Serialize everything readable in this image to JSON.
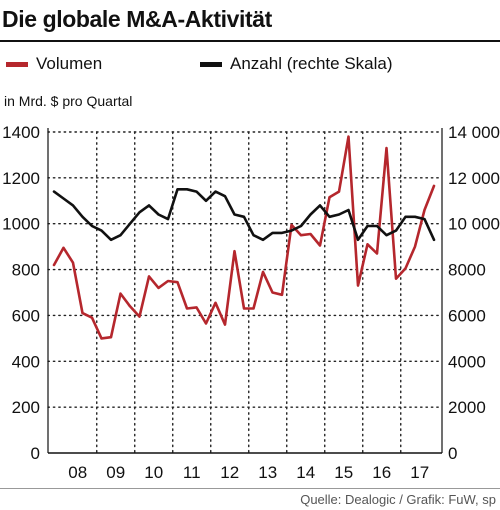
{
  "title": "Die globale M&A-Aktivität",
  "legend": {
    "volumen": "Volumen",
    "anzahl": "Anzahl (rechte Skala)"
  },
  "source": "Quelle: Dealogic / Grafik: FuW, sp",
  "colors": {
    "volumen": "#b5272d",
    "anzahl": "#111111",
    "grid": "#222222"
  },
  "chart_data": {
    "type": "line",
    "unit_label": "in Mrd. $ pro Quartal",
    "x_unit": "quarter",
    "x": [
      "2007-Q4",
      "2008-Q1",
      "2008-Q2",
      "2008-Q3",
      "2008-Q4",
      "2009-Q1",
      "2009-Q2",
      "2009-Q3",
      "2009-Q4",
      "2010-Q1",
      "2010-Q2",
      "2010-Q3",
      "2010-Q4",
      "2011-Q1",
      "2011-Q2",
      "2011-Q3",
      "2011-Q4",
      "2012-Q1",
      "2012-Q2",
      "2012-Q3",
      "2012-Q4",
      "2013-Q1",
      "2013-Q2",
      "2013-Q3",
      "2013-Q4",
      "2014-Q1",
      "2014-Q2",
      "2014-Q3",
      "2014-Q4",
      "2015-Q1",
      "2015-Q2",
      "2015-Q3",
      "2015-Q4",
      "2016-Q1",
      "2016-Q2",
      "2016-Q3",
      "2016-Q4",
      "2017-Q1",
      "2017-Q2",
      "2017-Q3",
      "2017-Q4"
    ],
    "x_tick_labels": [
      "08",
      "09",
      "10",
      "11",
      "12",
      "13",
      "14",
      "15",
      "16",
      "17"
    ],
    "series": [
      {
        "name": "Volumen",
        "axis": "left",
        "values": [
          820,
          895,
          830,
          610,
          590,
          500,
          505,
          695,
          640,
          595,
          770,
          720,
          750,
          745,
          630,
          635,
          565,
          655,
          560,
          880,
          630,
          630,
          790,
          700,
          690,
          995,
          950,
          955,
          905,
          1115,
          1140,
          1380,
          730,
          910,
          870,
          1330,
          760,
          805,
          900,
          1060,
          1165
        ]
      },
      {
        "name": "Anzahl (rechte Skala)",
        "axis": "right",
        "values": [
          11400,
          11100,
          10800,
          10300,
          9900,
          9700,
          9300,
          9500,
          10000,
          10500,
          10800,
          10400,
          10200,
          11500,
          11500,
          11400,
          11000,
          11400,
          11200,
          10400,
          10300,
          9500,
          9300,
          9600,
          9600,
          9700,
          9900,
          10400,
          10800,
          10300,
          10400,
          10600,
          9300,
          9900,
          9900,
          9500,
          9700,
          10300,
          10300,
          10200,
          9300
        ]
      }
    ],
    "y_left": {
      "min": 0,
      "max": 1400,
      "ticks": [
        "0",
        "200",
        "400",
        "600",
        "800",
        "1000",
        "1200",
        "1400"
      ]
    },
    "y_right": {
      "min": 0,
      "max": 14000,
      "ticks": [
        "0",
        "2000",
        "4000",
        "6000",
        "8000",
        "10 000",
        "12 000",
        "14 000"
      ]
    },
    "grid": true
  }
}
